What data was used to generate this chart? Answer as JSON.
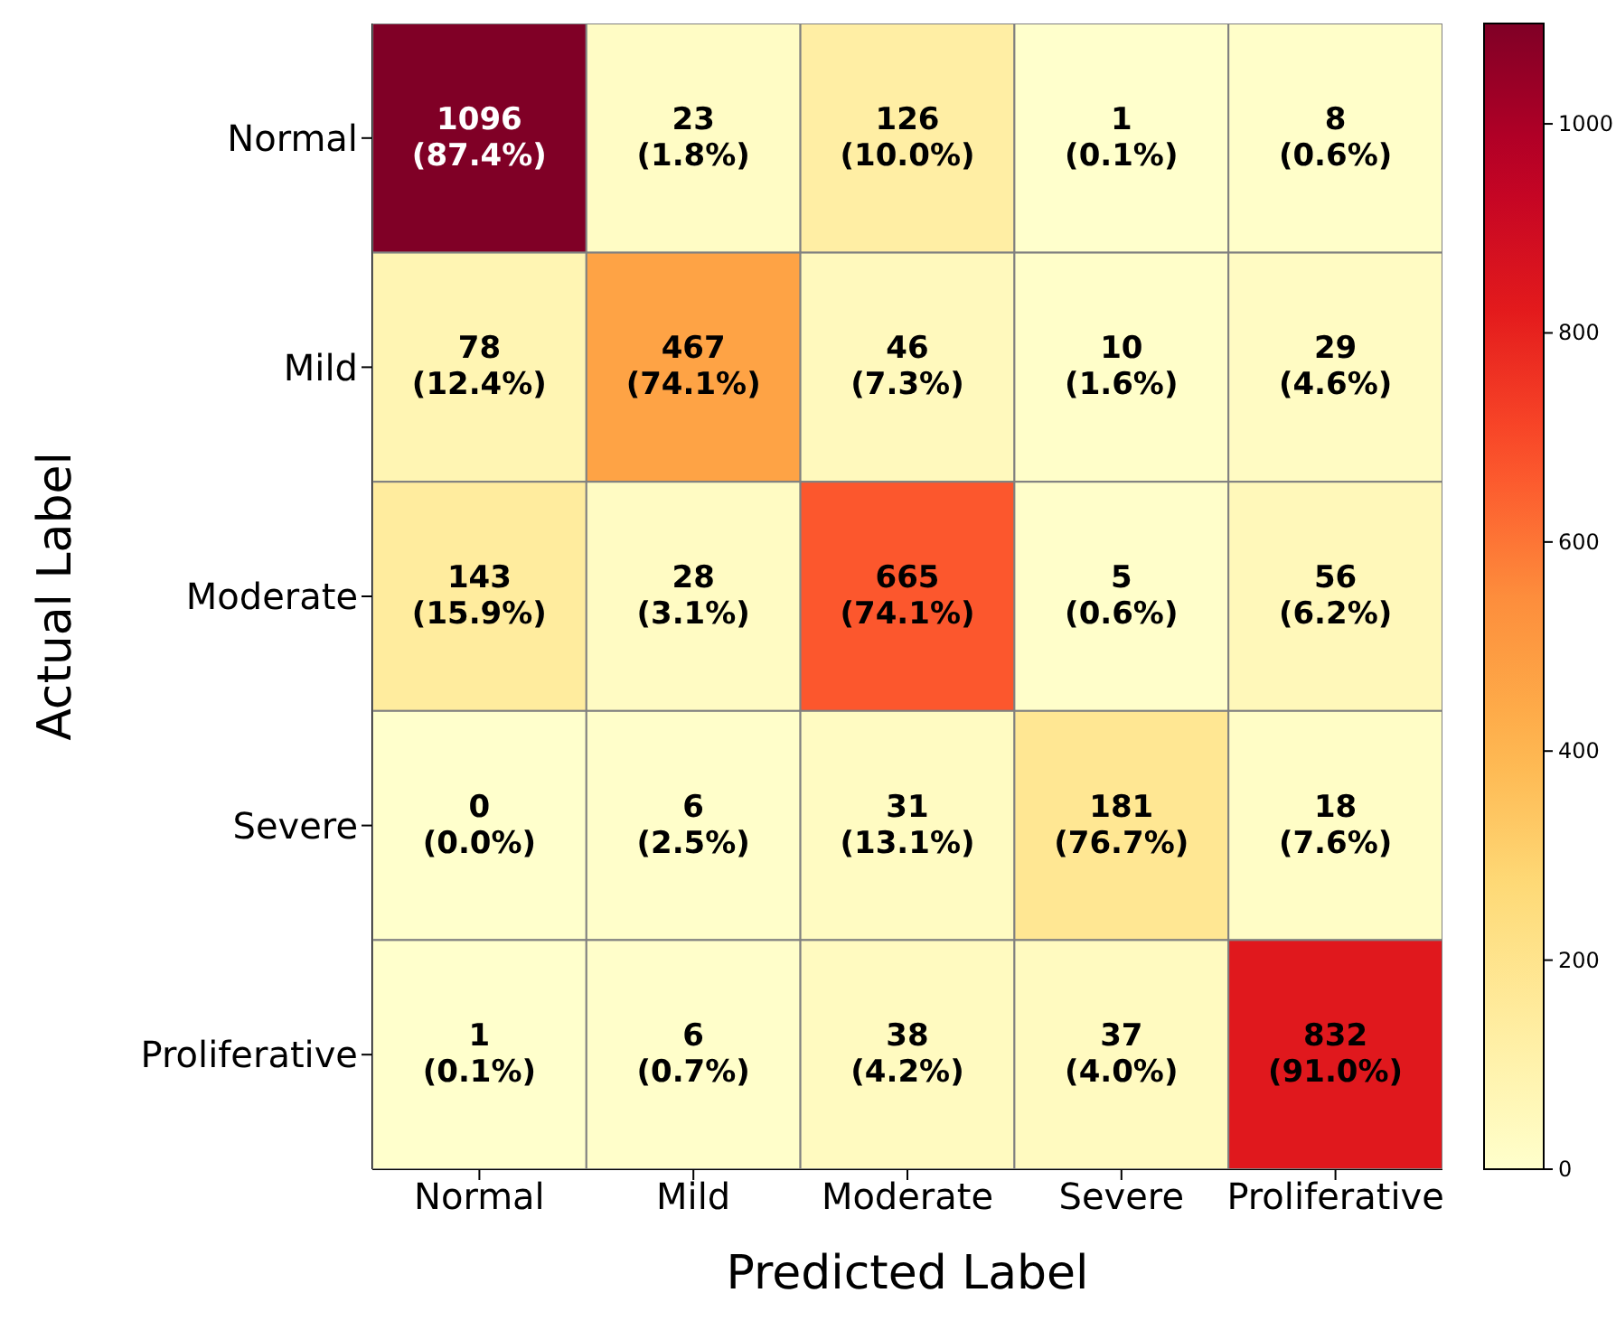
{
  "chart_data": {
    "type": "heatmap",
    "xlabel": "Predicted Label",
    "ylabel": "Actual Label",
    "categories": [
      "Normal",
      "Mild",
      "Moderate",
      "Severe",
      "Proliferative"
    ],
    "y_categories": [
      "Normal",
      "Mild",
      "Moderate",
      "Severe",
      "Proliferative"
    ],
    "cells": [
      [
        1096,
        23,
        126,
        1,
        8
      ],
      [
        78,
        467,
        46,
        10,
        29
      ],
      [
        143,
        28,
        665,
        5,
        56
      ],
      [
        0,
        6,
        31,
        181,
        18
      ],
      [
        1,
        6,
        38,
        37,
        832
      ]
    ],
    "cell_labels": [
      [
        "1096\n(87.4%)",
        "23\n(1.8%)",
        "126\n(10.0%)",
        "1\n(0.1%)",
        "8\n(0.6%)"
      ],
      [
        "78\n(12.4%)",
        "467\n(74.1%)",
        "46\n(7.3%)",
        "10\n(1.6%)",
        "29\n(4.6%)"
      ],
      [
        "143\n(15.9%)",
        "28\n(3.1%)",
        "665\n(74.1%)",
        "5\n(0.6%)",
        "56\n(6.2%)"
      ],
      [
        "0\n(0.0%)",
        "6\n(2.5%)",
        "31\n(13.1%)",
        "181\n(76.7%)",
        "18\n(7.6%)"
      ],
      [
        "1\n(0.1%)",
        "6\n(0.7%)",
        "38\n(4.2%)",
        "37\n(4.0%)",
        "832\n(91.0%)"
      ]
    ],
    "clim": [
      0,
      1096
    ],
    "cticks": [
      0,
      200,
      400,
      600,
      800,
      1000
    ]
  }
}
